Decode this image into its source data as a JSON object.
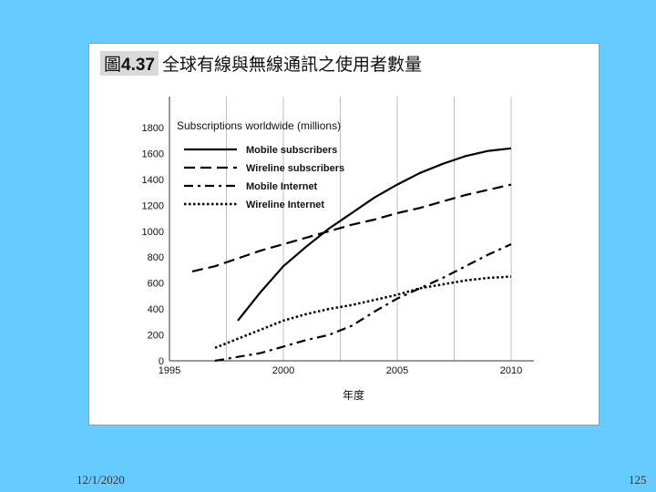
{
  "slide": {
    "date": "12/1/2020",
    "page_number": "125"
  },
  "figure": {
    "label": "圖",
    "number": "4.37",
    "title": "全球有線與無線通訊之使用者數量"
  },
  "chart_data": {
    "type": "line",
    "title": "Subscriptions worldwide (millions)",
    "xlabel": "年度",
    "ylabel": "",
    "xlim": [
      1995,
      2011
    ],
    "ylim": [
      0,
      1800
    ],
    "x_ticks": [
      1995,
      2000,
      2005,
      2010
    ],
    "y_ticks": [
      0,
      200,
      400,
      600,
      800,
      1000,
      1200,
      1400,
      1600,
      1800
    ],
    "grid": "vertical-only",
    "legend_position": "top-left",
    "series": [
      {
        "name": "Mobile subscribers",
        "style": "solid",
        "x": [
          1998,
          1999,
          2000,
          2001,
          2002,
          2003,
          2004,
          2005,
          2006,
          2007,
          2008,
          2009,
          2010
        ],
        "values": [
          310,
          530,
          730,
          880,
          1020,
          1140,
          1260,
          1360,
          1450,
          1520,
          1580,
          1620,
          1640
        ]
      },
      {
        "name": "Wireline subscribers",
        "style": "dashed",
        "x": [
          1996,
          1997,
          1998,
          1999,
          2000,
          2001,
          2002,
          2003,
          2004,
          2005,
          2006,
          2007,
          2008,
          2009,
          2010
        ],
        "values": [
          690,
          730,
          790,
          850,
          900,
          950,
          1000,
          1050,
          1090,
          1140,
          1180,
          1230,
          1280,
          1320,
          1360
        ]
      },
      {
        "name": "Mobile Internet",
        "style": "dash-dot",
        "x": [
          1997,
          1998,
          1999,
          2000,
          2001,
          2002,
          2003,
          2004,
          2005,
          2006,
          2007,
          2008,
          2009,
          2010
        ],
        "values": [
          0,
          30,
          60,
          110,
          160,
          200,
          270,
          380,
          480,
          560,
          640,
          730,
          820,
          900
        ]
      },
      {
        "name": "Wireline Internet",
        "style": "dotted",
        "x": [
          1997,
          1998,
          1999,
          2000,
          2001,
          2002,
          2003,
          2004,
          2005,
          2006,
          2007,
          2008,
          2009,
          2010
        ],
        "values": [
          100,
          170,
          240,
          310,
          360,
          400,
          430,
          470,
          510,
          560,
          590,
          620,
          640,
          650
        ]
      }
    ],
    "colors": {
      "line": "#000000",
      "grid": "#bfbfbf"
    }
  }
}
